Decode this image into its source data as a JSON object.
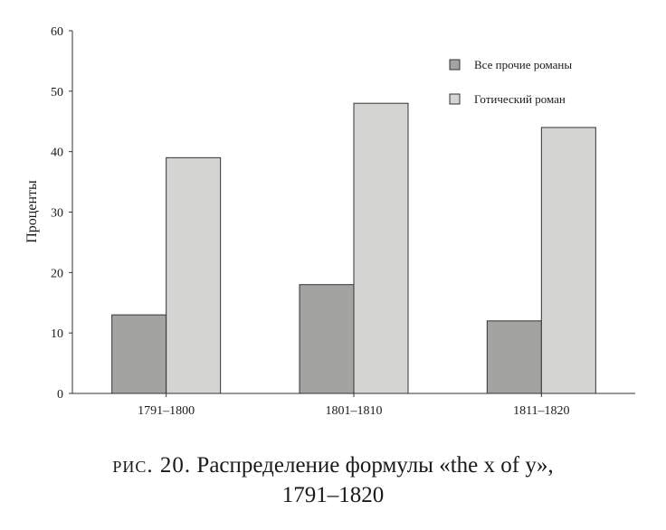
{
  "chart_data": {
    "type": "bar",
    "categories": [
      "1791–1800",
      "1801–1810",
      "1811–1820"
    ],
    "series": [
      {
        "name": "Все прочие романы",
        "values": [
          13,
          18,
          12
        ],
        "color": "#a3a3a1"
      },
      {
        "name": "Готический роман",
        "values": [
          39,
          48,
          44
        ],
        "color": "#d4d4d2"
      }
    ],
    "ylabel": "Проценты",
    "ylim": [
      0,
      60
    ],
    "yticks": [
      0,
      10,
      20,
      30,
      40,
      50,
      60
    ],
    "grid": false,
    "legend_position": "top-right"
  },
  "caption": {
    "fig_label": "рис. 20.",
    "line1": "Распределение формулы «the x of y»,",
    "line2": "1791–1820"
  }
}
